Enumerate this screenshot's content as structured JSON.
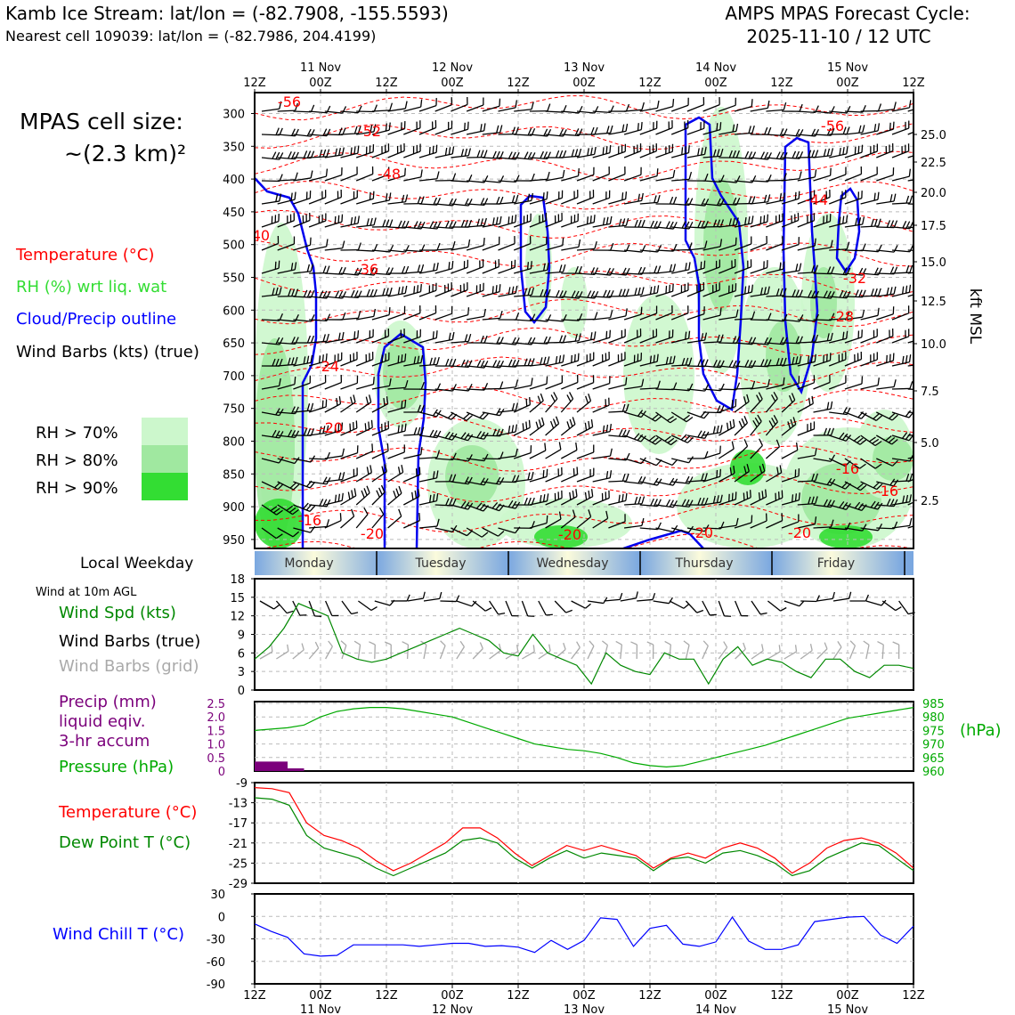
{
  "header": {
    "title_left": "Kamb Ice Stream: lat/lon = (-82.7908, -155.5593)",
    "subtitle_left": "Nearest cell 109039: lat/lon = (-82.7986, 204.4199)",
    "title_right_1": "AMPS MPAS Forecast Cycle:",
    "title_right_2": "2025-11-10 / 12 UTC"
  },
  "legend": {
    "cell_size_1": "MPAS cell size:",
    "cell_size_2": "~(2.3 km)²",
    "temperature": "Temperature (°C)",
    "rh": "RH (%) wrt liq. wat",
    "cloud": "Cloud/Precip outline",
    "wind_barbs": "Wind Barbs (kts) (true)",
    "rh70": "RH > 70%",
    "rh80": "RH > 80%",
    "rh90": "RH > 90%",
    "rh70_color": "#ccf7cc",
    "rh80_color": "#a0e8a0",
    "rh90_color": "#33dd33",
    "local_weekday": "Local Weekday",
    "wind_10m": "Wind at 10m AGL",
    "wind_spd": "Wind Spd (kts)",
    "wind_barbs_true": "Wind Barbs (true)",
    "wind_barbs_grid": "Wind Barbs (grid)",
    "precip_1": "Precip (mm)",
    "precip_2": "liquid eqiv.",
    "precip_3": "3-hr accum",
    "pressure": "Pressure (hPa)",
    "temp2": "Temperature (°C)",
    "dewpoint": "Dew Point T (°C)",
    "windchill": "Wind Chill T (°C)",
    "hpa_unit": "(hPa)",
    "kft": "kft MSL"
  },
  "chart_data": {
    "type": "line",
    "time_top_hours": [
      "12Z",
      "00Z",
      "12Z",
      "00Z",
      "12Z",
      "00Z",
      "12Z",
      "00Z",
      "12Z",
      "00Z",
      "12Z"
    ],
    "time_dates": [
      "11 Nov",
      "12 Nov",
      "13 Nov",
      "14 Nov",
      "15 Nov"
    ],
    "weekdays": [
      "Monday",
      "Tuesday",
      "Wednesday",
      "Thursday",
      "Friday"
    ],
    "profile": {
      "pressure_ticks": [
        "300",
        "350",
        "400",
        "450",
        "500",
        "550",
        "600",
        "650",
        "700",
        "750",
        "800",
        "850",
        "900",
        "950"
      ],
      "kft_ticks": [
        "25.0",
        "22.5",
        "20.0",
        "17.5",
        "15.0",
        "12.5",
        "10.0",
        "7.5",
        "5.0",
        "2.5"
      ],
      "temp_labels": [
        "-56",
        "-52",
        "-48",
        "-40",
        "-36",
        "-24",
        "-20",
        "-16",
        "-20",
        "-20",
        "-20",
        "-20",
        "-56",
        "-44",
        "-32",
        "-28",
        "-16",
        "-16"
      ]
    },
    "wind_panel": {
      "y_ticks": [
        "18",
        "15",
        "12",
        "9",
        "6",
        "3",
        "0"
      ],
      "ylim": [
        0,
        18
      ],
      "speed": [
        5,
        7,
        10,
        14,
        13,
        12,
        6,
        5,
        4.5,
        5,
        6,
        7,
        8,
        9,
        10,
        9,
        8,
        6,
        5.5,
        9,
        6,
        5,
        4,
        1,
        6,
        4,
        3,
        2.5,
        6,
        5,
        5,
        1,
        5,
        7,
        4,
        5,
        4.5,
        3,
        2,
        5,
        5,
        3,
        2,
        4,
        4,
        3.5
      ]
    },
    "pressure_panel": {
      "precip_ticks": [
        "2.5",
        "2.0",
        "1.5",
        "1.0",
        "0.5",
        "0"
      ],
      "pressure_ticks": [
        "985",
        "980",
        "975",
        "970",
        "965",
        "960"
      ],
      "precip_mm": [
        0.35,
        0.35,
        0.1,
        0,
        0,
        0,
        0,
        0,
        0,
        0,
        0,
        0,
        0,
        0,
        0,
        0,
        0,
        0,
        0,
        0,
        0,
        0,
        0,
        0,
        0,
        0,
        0,
        0,
        0,
        0,
        0,
        0,
        0,
        0,
        0,
        0,
        0,
        0,
        0,
        0,
        0
      ],
      "pressure_hpa": [
        975,
        975.5,
        976,
        977,
        980,
        982,
        983,
        983.5,
        983.5,
        983,
        982,
        981,
        980,
        978,
        976,
        974,
        972,
        970,
        969,
        968,
        967.5,
        966.5,
        965,
        963,
        962,
        961.5,
        962,
        963.5,
        965,
        966.5,
        968,
        969.5,
        971.5,
        973.5,
        975.5,
        977.5,
        979.5,
        980.5,
        981.5,
        982.5,
        983.5
      ]
    },
    "temp_panel": {
      "y_ticks": [
        "-9",
        "-13",
        "-17",
        "-21",
        "-25",
        "-29"
      ],
      "ylim": [
        -29,
        -9
      ],
      "temperature": [
        -10,
        -10.2,
        -11,
        -17,
        -19.5,
        -20.5,
        -22,
        -24.5,
        -26.5,
        -25,
        -23,
        -21,
        -18,
        -18,
        -20,
        -23,
        -25.5,
        -23.5,
        -21.5,
        -22.5,
        -21.5,
        -22.5,
        -23.5,
        -26,
        -24,
        -23,
        -24,
        -22,
        -21,
        -22,
        -24,
        -27,
        -25,
        -22,
        -20.5,
        -20,
        -21,
        -23,
        -26
      ],
      "dewpoint": [
        -12,
        -12.3,
        -13.5,
        -19.5,
        -22,
        -23,
        -24,
        -26,
        -27.5,
        -26,
        -24.5,
        -23,
        -20.5,
        -20,
        -21,
        -24,
        -26,
        -24,
        -22.5,
        -24,
        -23,
        -23.5,
        -24,
        -26.5,
        -24.2,
        -23.8,
        -25,
        -23,
        -22.5,
        -23.5,
        -25,
        -27.5,
        -26.5,
        -24,
        -22.5,
        -21,
        -21.5,
        -24,
        -26.5
      ]
    },
    "windchill_panel": {
      "y_ticks": [
        "30",
        "0",
        "-30",
        "-60",
        "-90"
      ],
      "ylim": [
        -90,
        30
      ],
      "windchill": [
        -10,
        -20,
        -28,
        -50,
        -53,
        -52,
        -38,
        -38,
        -38,
        -38,
        -40,
        -38,
        -36,
        -36,
        -40,
        -39,
        -41,
        -48,
        -32,
        -44,
        -32,
        -2,
        -4,
        -40,
        -16,
        -12,
        -37,
        -40,
        -34,
        -1,
        -33,
        -44,
        -44,
        -38,
        -7,
        -4,
        -1,
        0,
        -25,
        -36,
        -13
      ]
    }
  }
}
